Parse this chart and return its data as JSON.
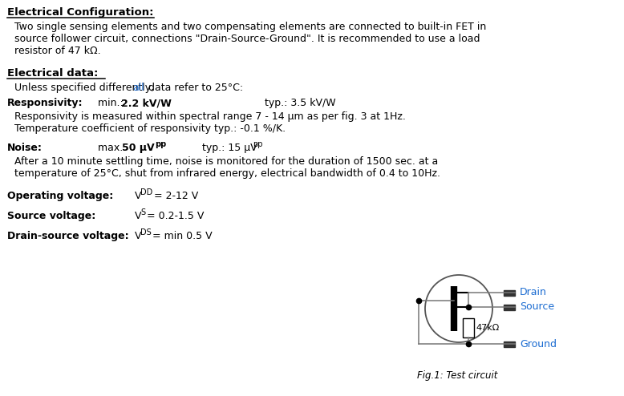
{
  "title1": "Electrical Configuration:",
  "para1_line1": "Two single sensing elements and two compensating elements are connected to built-in FET in",
  "para1_line2": "source follower circuit, connections \"Drain-Source-Ground\". It is recommended to use a load",
  "para1_line3": "resistor of 47 kΩ.",
  "title2": "Electrical data:",
  "color_highlight": "#1a6bd1",
  "color_text": "#000000",
  "bg_color": "#ffffff",
  "drain_label": "Drain",
  "source_label": "Source",
  "ground_label": "Ground",
  "resistor_label": "47kΩ",
  "fig_caption": "Fig.1: Test circuit",
  "fig_w": 7.78,
  "fig_h": 4.94,
  "dpi": 100
}
